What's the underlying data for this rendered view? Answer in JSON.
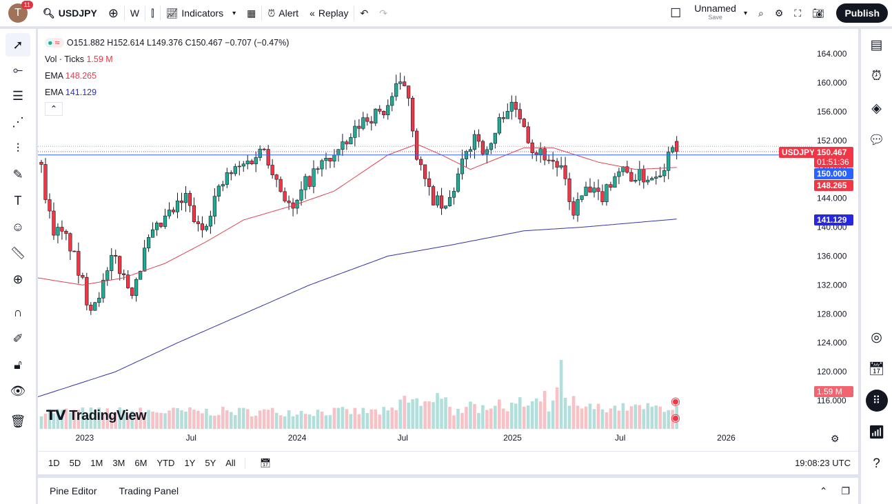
{
  "topbar": {
    "avatar": "T",
    "notifications": "11",
    "symbol": "USDJPY",
    "interval": "W",
    "indicators": "Indicators",
    "alert": "Alert",
    "replay": "Replay",
    "layout_name": "Unnamed",
    "layout_status": "Save",
    "publish": "Publish"
  },
  "legend": {
    "ohlc": "O151.882 H152.614 L149.376 C150.467 −0.707 (−0.47%)",
    "vol_label": "Vol · Ticks",
    "vol_value": "1.59 M",
    "ema1_label": "EMA",
    "ema1_value": "148.265",
    "ema2_label": "EMA",
    "ema2_value": "141.129"
  },
  "price_tags": {
    "symbol": "USDJPY",
    "last": "150.467",
    "countdown": "01:51:36",
    "line": "150.000",
    "ema1": "148.265",
    "ema2": "141.129",
    "volume": "1.59 M"
  },
  "watermark": "TradingView",
  "ranges": [
    "1D",
    "5D",
    "1M",
    "3M",
    "6M",
    "YTD",
    "1Y",
    "5Y",
    "All"
  ],
  "clock": "19:08:23 UTC",
  "bottom": {
    "pine": "Pine Editor",
    "trading": "Trading Panel"
  },
  "colors": {
    "up": "#22ab94",
    "down": "#f23645",
    "ema1": "#e0414f",
    "ema2": "#3131a8",
    "blue": "#2962ff"
  },
  "chart_data": {
    "type": "candlestick",
    "symbol": "USDJPY",
    "interval": "weekly",
    "y_ticks": [
      164,
      160,
      156,
      152,
      148,
      144,
      140,
      136,
      132,
      128,
      124,
      120,
      116
    ],
    "ylim": [
      114.2,
      166
    ],
    "x_ticks": [
      {
        "label": "2023",
        "week": 10.5
      },
      {
        "label": "Jul",
        "week": 36.3
      },
      {
        "label": "2024",
        "week": 62
      },
      {
        "label": "Jul",
        "week": 87.6
      },
      {
        "label": "2025",
        "week": 114.2
      },
      {
        "label": "Jul",
        "week": 140.3
      },
      {
        "label": "2026",
        "week": 166
      }
    ],
    "close_path": [
      [
        0,
        148
      ],
      [
        2.5,
        140
      ],
      [
        6.7,
        138
      ],
      [
        11.7,
        129
      ],
      [
        15,
        132
      ],
      [
        17.6,
        136
      ],
      [
        21.7,
        131
      ],
      [
        26,
        138
      ],
      [
        30,
        141
      ],
      [
        35,
        144
      ],
      [
        38.5,
        139
      ],
      [
        42,
        144
      ],
      [
        45,
        147
      ],
      [
        50,
        149
      ],
      [
        54,
        151
      ],
      [
        57.5,
        146
      ],
      [
        61,
        142
      ],
      [
        64,
        146
      ],
      [
        68.6,
        149
      ],
      [
        73.6,
        151
      ],
      [
        78,
        155
      ],
      [
        83,
        156
      ],
      [
        86,
        159
      ],
      [
        88.6,
        160
      ],
      [
        91,
        150
      ],
      [
        93.6,
        145
      ],
      [
        97.8,
        142
      ],
      [
        101,
        147
      ],
      [
        105,
        153
      ],
      [
        108,
        150
      ],
      [
        110,
        153
      ],
      [
        112.7,
        157
      ],
      [
        117,
        155
      ],
      [
        118.7,
        151
      ],
      [
        122,
        150
      ],
      [
        126,
        148
      ],
      [
        128.6,
        142
      ],
      [
        132,
        145
      ],
      [
        135.5,
        144
      ],
      [
        139.6,
        148
      ],
      [
        143.8,
        147
      ],
      [
        148,
        147
      ],
      [
        151.5,
        149
      ],
      [
        153,
        152
      ],
      [
        154,
        150.467
      ]
    ],
    "ema_fast": [
      [
        -1,
        133
      ],
      [
        10,
        132
      ],
      [
        20,
        133
      ],
      [
        30,
        135
      ],
      [
        40,
        138
      ],
      [
        49,
        141
      ],
      [
        61,
        143
      ],
      [
        71,
        145
      ],
      [
        84,
        150
      ],
      [
        91,
        151.5
      ],
      [
        97,
        150
      ],
      [
        104,
        148
      ],
      [
        117,
        151
      ],
      [
        124,
        151
      ],
      [
        135,
        149
      ],
      [
        144,
        148
      ],
      [
        154,
        148.265
      ]
    ],
    "ema_slow": [
      [
        -1,
        116.5
      ],
      [
        18,
        120
      ],
      [
        33,
        124
      ],
      [
        49,
        128
      ],
      [
        65,
        132
      ],
      [
        84,
        136
      ],
      [
        99,
        137.5
      ],
      [
        117,
        139.5
      ],
      [
        131,
        140
      ],
      [
        154,
        141.129
      ]
    ],
    "last_price": 150.467,
    "horizontal_line": 150.0
  }
}
